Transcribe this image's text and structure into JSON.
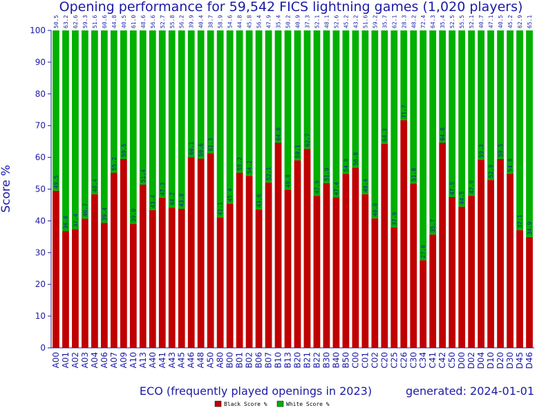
{
  "chart_data": {
    "type": "bar",
    "stacked": true,
    "title": "Opening performance for 59,542 FICS lightning games (1,020 players)",
    "xlabel": "ECO (frequently played openings in 2023)",
    "ylabel": "Score %",
    "generated": "generated: 2024-01-01",
    "ylim": [
      0,
      100
    ],
    "yticks": [
      0,
      10,
      20,
      30,
      40,
      50,
      60,
      70,
      80,
      90,
      100
    ],
    "grid": false,
    "legend_position": "bottom",
    "categories": [
      "A00",
      "A01",
      "A02",
      "A03",
      "A04",
      "A06",
      "A07",
      "A09",
      "A10",
      "A13",
      "A40",
      "A41",
      "A43",
      "A45",
      "A46",
      "A48",
      "A50",
      "A80",
      "B00",
      "B01",
      "B02",
      "B06",
      "B07",
      "B10",
      "B13",
      "B20",
      "B21",
      "B22",
      "B30",
      "B40",
      "B50",
      "C00",
      "C01",
      "C02",
      "C20",
      "C25",
      "C26",
      "C30",
      "C34",
      "C41",
      "C42",
      "C50",
      "D00",
      "D02",
      "D04",
      "D10",
      "D20",
      "D30",
      "D45",
      "D46"
    ],
    "series": [
      {
        "name": "Black Score %",
        "color": "#c00000",
        "values": [
          49.5,
          36.8,
          37.4,
          40.7,
          48.4,
          39.4,
          55.2,
          59.5,
          39.0,
          51.4,
          43.4,
          47.3,
          44.2,
          43.8,
          60.1,
          59.6,
          61.3,
          41.1,
          45.4,
          55.2,
          54.2,
          43.6,
          52.1,
          64.6,
          49.8,
          59.1,
          62.7,
          47.9,
          51.9,
          47.4,
          54.8,
          56.8,
          48.4,
          40.8,
          64.3,
          37.9,
          71.7,
          51.8,
          27.6,
          35.7,
          64.6,
          47.5,
          44.5,
          47.9,
          59.3,
          52.9,
          59.5,
          54.8,
          37.1,
          34.9
        ]
      },
      {
        "name": "White Score %",
        "color": "#00b000",
        "values": [
          50.5,
          63.2,
          62.6,
          59.3,
          51.6,
          60.6,
          44.8,
          40.5,
          61.0,
          48.6,
          56.6,
          52.7,
          55.8,
          56.2,
          39.9,
          40.4,
          38.7,
          58.9,
          54.6,
          44.8,
          45.8,
          56.4,
          47.9,
          35.4,
          50.2,
          40.9,
          37.3,
          52.1,
          48.1,
          52.6,
          45.2,
          43.2,
          51.6,
          59.2,
          35.7,
          62.1,
          28.3,
          48.2,
          72.4,
          64.3,
          35.4,
          52.5,
          55.5,
          52.1,
          40.7,
          47.1,
          40.5,
          45.2,
          62.9,
          65.1
        ]
      }
    ]
  }
}
